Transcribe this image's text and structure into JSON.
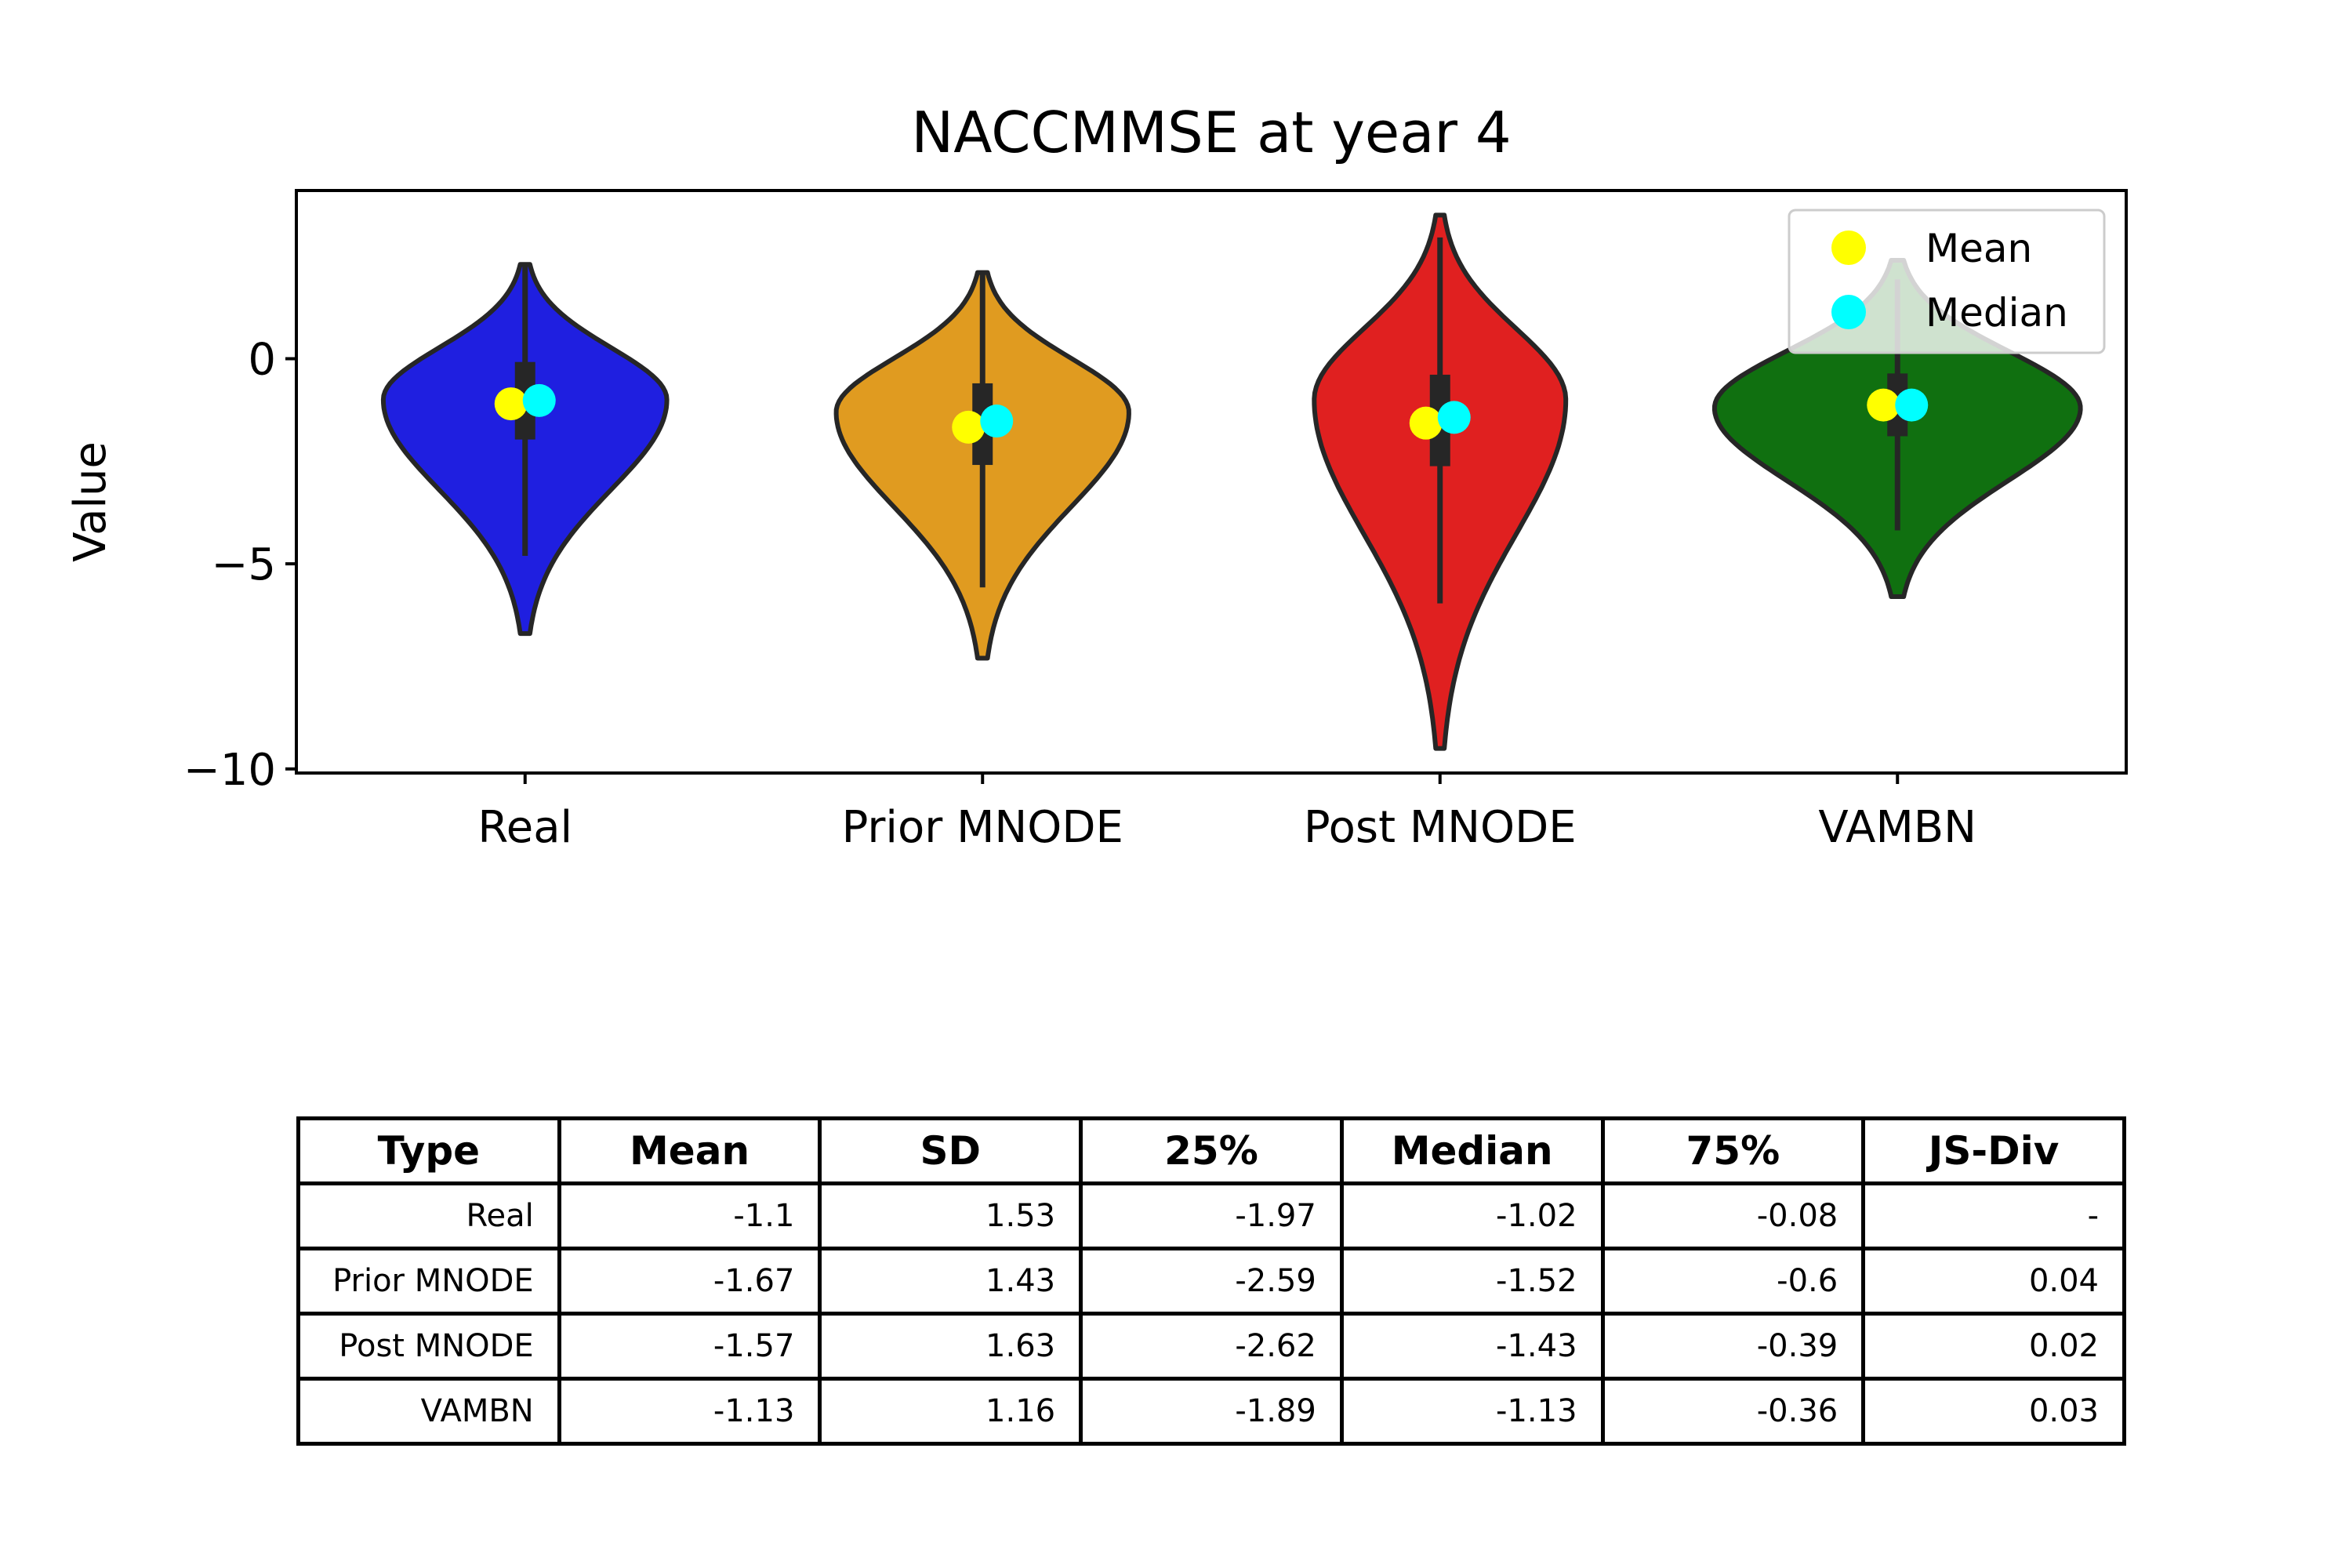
{
  "chart_data": {
    "type": "violin",
    "title": "NACCMMSE at year 4",
    "xlabel": "",
    "ylabel": "Value",
    "ylim": [
      -10.1,
      4.1
    ],
    "yticks": [
      0,
      -5,
      -10
    ],
    "ytick_labels": [
      "0",
      "−5",
      "−10"
    ],
    "categories": [
      "Real",
      "Prior MNODE",
      "Post MNODE",
      "VAMBN"
    ],
    "legend": {
      "placement": "top-right",
      "entries": [
        "Mean",
        "Median"
      ]
    },
    "series": [
      {
        "category": "Real",
        "color": "#1f1fe0",
        "min": -6.7,
        "max": 2.3,
        "q1": -1.97,
        "median": -1.02,
        "q3": -0.08,
        "mean": -1.1,
        "mode": -1.0,
        "width": 0.62
      },
      {
        "category": "Prior MNODE",
        "color": "#e09b20",
        "min": -7.3,
        "max": 2.1,
        "q1": -2.59,
        "median": -1.52,
        "q3": -0.6,
        "mean": -1.67,
        "mode": -1.3,
        "width": 0.64
      },
      {
        "category": "Post MNODE",
        "color": "#e02020",
        "min": -9.5,
        "max": 3.5,
        "q1": -2.62,
        "median": -1.43,
        "q3": -0.39,
        "mean": -1.57,
        "mode": -1.0,
        "width": 0.55
      },
      {
        "category": "VAMBN",
        "color": "#107010",
        "min": -5.8,
        "max": 2.4,
        "q1": -1.89,
        "median": -1.13,
        "q3": -0.36,
        "mean": -1.13,
        "mode": -1.2,
        "width": 0.8
      }
    ],
    "mean_color": "#ffff00",
    "median_color": "#00ffff"
  },
  "table": {
    "headers": [
      "Type",
      "Mean",
      "SD",
      "25%",
      "Median",
      "75%",
      "JS-Div"
    ],
    "rows": [
      [
        "Real",
        "-1.1",
        "1.53",
        "-1.97",
        "-1.02",
        "-0.08",
        "-"
      ],
      [
        "Prior MNODE",
        "-1.67",
        "1.43",
        "-2.59",
        "-1.52",
        "-0.6",
        "0.04"
      ],
      [
        "Post MNODE",
        "-1.57",
        "1.63",
        "-2.62",
        "-1.43",
        "-0.39",
        "0.02"
      ],
      [
        "VAMBN",
        "-1.13",
        "1.16",
        "-1.89",
        "-1.13",
        "-0.36",
        "0.03"
      ]
    ]
  }
}
